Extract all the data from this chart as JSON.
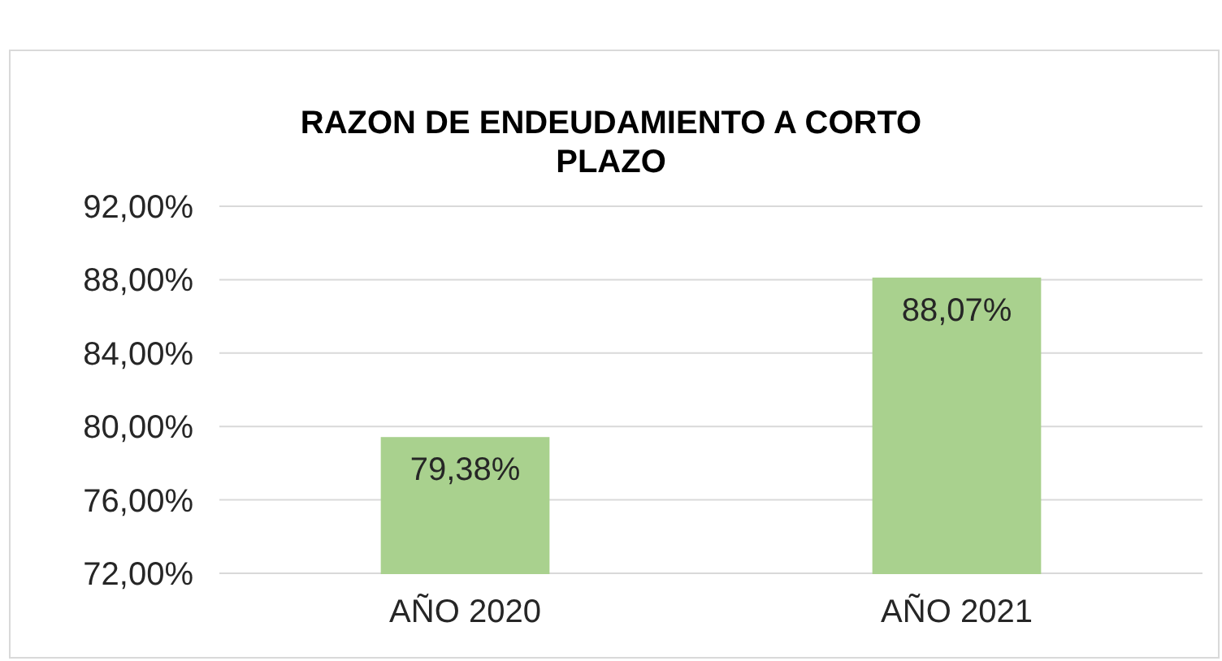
{
  "chart_data": {
    "type": "bar",
    "title": "RAZON DE ENDEUDAMIENTO A CORTO PLAZO",
    "categories": [
      "AÑO 2020",
      "AÑO 2021"
    ],
    "values": [
      79.38,
      88.07
    ],
    "value_labels": [
      "79,38%",
      "88,07%"
    ],
    "color": "#a9d18e",
    "ylim": [
      72,
      92
    ],
    "yticks": [
      {
        "value": 72,
        "label": "72,00%"
      },
      {
        "value": 76,
        "label": "76,00%"
      },
      {
        "value": 80,
        "label": "80,00%"
      },
      {
        "value": 84,
        "label": "84,00%"
      },
      {
        "value": 88,
        "label": "88,00%"
      },
      {
        "value": 92,
        "label": "92,00%"
      }
    ],
    "grid": "y"
  }
}
